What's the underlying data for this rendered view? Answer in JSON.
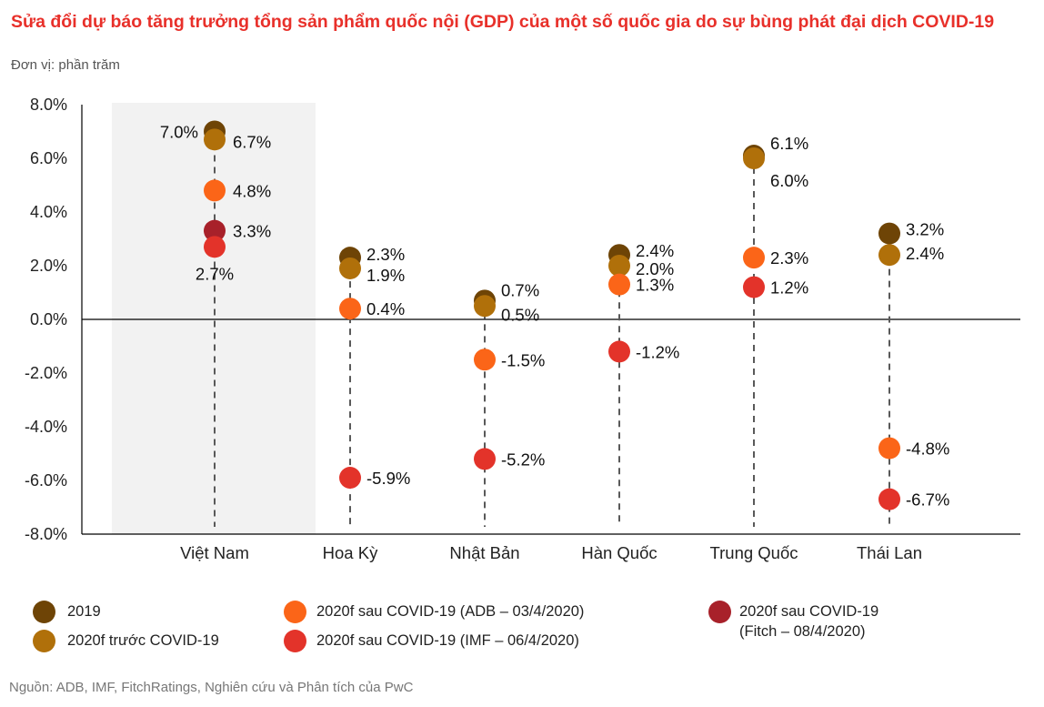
{
  "header": {
    "title": "Sửa đổi dự báo tăng trưởng tổng sản phẩm quốc nội (GDP) của một số quốc gia do sự bùng phát đại dịch COVID-19",
    "unit": "Đơn vị: phần trăm"
  },
  "source": "Nguồn: ADB, IMF, FitchRatings, Nghiên cứu và Phân tích của PwC",
  "chart_data": {
    "type": "scatter",
    "subtype": "dot-plot",
    "title": "Sửa đổi dự báo tăng trưởng tổng sản phẩm quốc nội (GDP) của một số quốc gia do sự bùng phát đại dịch COVID-19",
    "ylabel": "Đơn vị: phần trăm",
    "xlabel": "",
    "ylim": [
      -8,
      8
    ],
    "yticks": [
      8,
      6,
      4,
      2,
      0,
      -2,
      -4,
      -6,
      -8
    ],
    "ytick_labels": [
      "8.0%",
      "6.0%",
      "4.0%",
      "2.0%",
      "0.0%",
      "-2.0%",
      "-4.0%",
      "-6.0%",
      "-8.0%"
    ],
    "categories": [
      "Việt Nam",
      "Hoa Kỳ",
      "Nhật Bản",
      "Hàn Quốc",
      "Trung Quốc",
      "Thái Lan"
    ],
    "highlight_category": "Việt Nam",
    "grid": false,
    "legend_position": "bottom",
    "series": [
      {
        "name": "2019",
        "color": "#6e4406",
        "values": [
          7.0,
          2.3,
          0.7,
          2.4,
          6.1,
          3.2
        ]
      },
      {
        "name": "2020f trước COVID-19",
        "color": "#b0700a",
        "values": [
          6.7,
          1.9,
          0.5,
          2.0,
          6.0,
          2.4
        ]
      },
      {
        "name": "2020f sau COVID-19 (ADB – 03/4/2020)",
        "color": "#fb6518",
        "values": [
          4.8,
          0.4,
          -1.5,
          1.3,
          2.3,
          -4.8
        ]
      },
      {
        "name": "2020f sau COVID-19 (IMF – 06/4/2020)",
        "color": "#e3332a",
        "values": [
          2.7,
          -5.9,
          -5.2,
          -1.2,
          1.2,
          -6.7
        ]
      },
      {
        "name": "2020f sau COVID-19 (Fitch – 08/4/2020)",
        "color": "#a8212a",
        "values": [
          3.3,
          null,
          null,
          null,
          null,
          null
        ]
      }
    ],
    "data_labels": [
      [
        "7.0%",
        "2.3%",
        "0.7%",
        "2.4%",
        "6.1%",
        "3.2%"
      ],
      [
        "6.7%",
        "1.9%",
        "0.5%",
        "2.0%",
        "6.0%",
        "2.4%"
      ],
      [
        "4.8%",
        "0.4%",
        "-1.5%",
        "1.3%",
        "2.3%",
        "-4.8%"
      ],
      [
        "2.7%",
        "-5.9%",
        "-5.2%",
        "-1.2%",
        "1.2%",
        "-6.7%"
      ],
      [
        "3.3%",
        null,
        null,
        null,
        null,
        null
      ]
    ]
  },
  "legend": {
    "items": [
      {
        "label": "2019",
        "color": "#6e4406"
      },
      {
        "label": "2020f trước COVID-19",
        "color": "#b0700a"
      },
      {
        "label": "2020f sau COVID-19 (ADB – 03/4/2020)",
        "color": "#fb6518"
      },
      {
        "label": "2020f sau COVID-19 (IMF – 06/4/2020)",
        "color": "#e3332a"
      },
      {
        "label": "2020f sau COVID-19",
        "label_line2": "(Fitch – 08/4/2020)",
        "color": "#a8212a"
      }
    ]
  }
}
